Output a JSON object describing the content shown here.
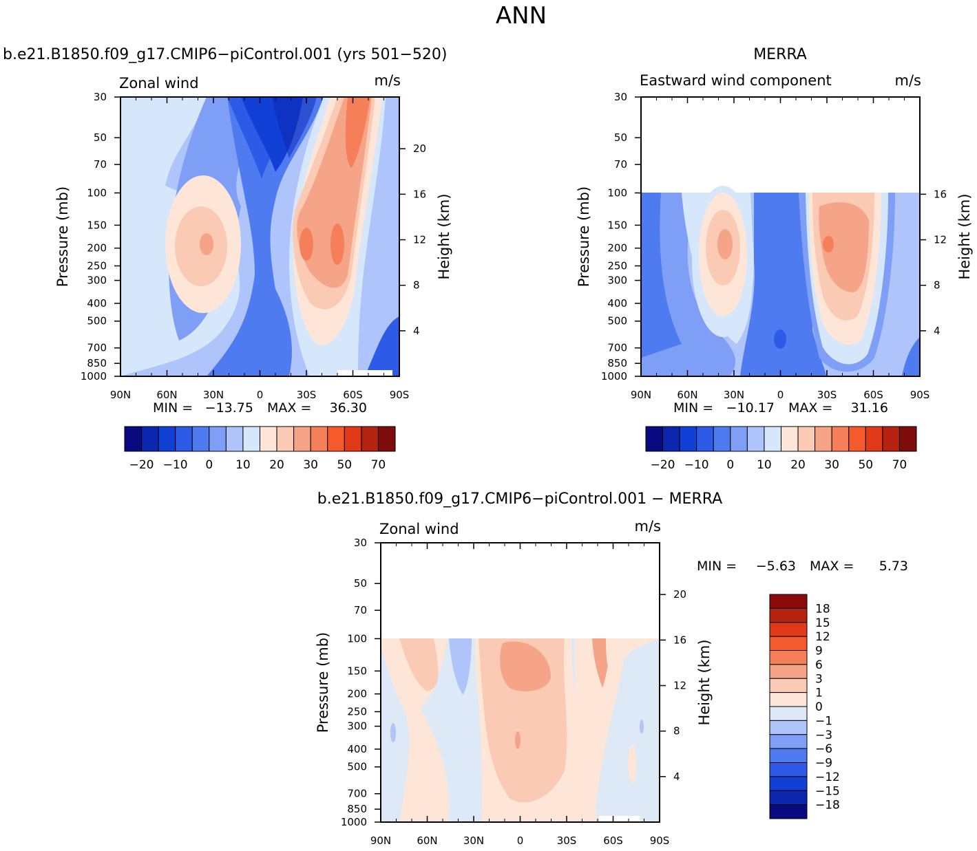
{
  "main_title": "ANN",
  "chart_data": [
    {
      "type": "heatmap",
      "id": "panel1",
      "title": "b.e21.B1850.f09_g17.CMIP6−piControl.001 (yrs 501−520)",
      "variable_label": "Zonal wind",
      "units": "m/s",
      "ylabel": "Pressure (mb)",
      "y2label": "Height (km)",
      "x_ticks": [
        "90N",
        "60N",
        "30N",
        "0",
        "30S",
        "60S",
        "90S"
      ],
      "y_ticks": [
        "30",
        "50",
        "70",
        "100",
        "150",
        "200",
        "250",
        "300",
        "400",
        "500",
        "700",
        "850",
        "1000"
      ],
      "y2_ticks": [
        "20",
        "16",
        "12",
        "8",
        "4"
      ],
      "min_label": "MIN =",
      "min_value": "−13.75",
      "max_label": "MAX =",
      "max_value": "36.30",
      "colorbar_levels": [
        "−20",
        "−10",
        "0",
        "10",
        "20",
        "30",
        "50",
        "70"
      ],
      "colors": [
        "#0a0a80",
        "#0c26b0",
        "#1140d6",
        "#2e5ae8",
        "#4f7bf0",
        "#7f9ef5",
        "#aec4fb",
        "#d6e6fb",
        "#fde6d8",
        "#fbcab4",
        "#f6a488",
        "#f47f59",
        "#f55a2c",
        "#e1381a",
        "#b5220f",
        "#7e0c0c"
      ]
    },
    {
      "type": "heatmap",
      "id": "panel2",
      "title": "MERRA",
      "variable_label": "Eastward wind component",
      "units": "m/s",
      "ylabel": "Pressure (mb)",
      "y2label": "Height (km)",
      "x_ticks": [
        "90N",
        "60N",
        "30N",
        "0",
        "30S",
        "60S",
        "90S"
      ],
      "y_ticks": [
        "30",
        "50",
        "70",
        "100",
        "150",
        "200",
        "250",
        "300",
        "400",
        "500",
        "700",
        "850",
        "1000"
      ],
      "y2_ticks": [
        "16",
        "12",
        "8",
        "4"
      ],
      "min_label": "MIN =",
      "min_value": "−10.17",
      "max_label": "MAX =",
      "max_value": "31.16",
      "colorbar_levels": [
        "−20",
        "−10",
        "0",
        "10",
        "20",
        "30",
        "50",
        "70"
      ]
    },
    {
      "type": "heatmap",
      "id": "panel3",
      "title": "b.e21.B1850.f09_g17.CMIP6−piControl.001 − MERRA",
      "variable_label": "Zonal wind",
      "units": "m/s",
      "ylabel": "Pressure (mb)",
      "y2label": "Height (km)",
      "x_ticks": [
        "90N",
        "60N",
        "30N",
        "0",
        "30S",
        "60S",
        "90S"
      ],
      "y_ticks": [
        "30",
        "50",
        "70",
        "100",
        "150",
        "200",
        "250",
        "300",
        "400",
        "500",
        "700",
        "850",
        "1000"
      ],
      "y2_ticks": [
        "20",
        "16",
        "12",
        "8",
        "4"
      ],
      "min_label": "MIN =",
      "min_value": "−5.63",
      "max_label": "MAX =",
      "max_value": "5.73",
      "colorbar_levels": [
        "18",
        "15",
        "12",
        "9",
        "6",
        "3",
        "1",
        "0",
        "−1",
        "−3",
        "−6",
        "−9",
        "−12",
        "−15",
        "−18"
      ],
      "colors": [
        "#8b0a0a",
        "#b5220f",
        "#e1381a",
        "#f55a2c",
        "#f47f59",
        "#f6a488",
        "#fbcab4",
        "#fde6d8",
        "#dde9f6",
        "#aec4fb",
        "#7f9ef5",
        "#4f7bf0",
        "#2e5ae8",
        "#1140d6",
        "#0c26b0",
        "#0a0a80"
      ]
    }
  ]
}
